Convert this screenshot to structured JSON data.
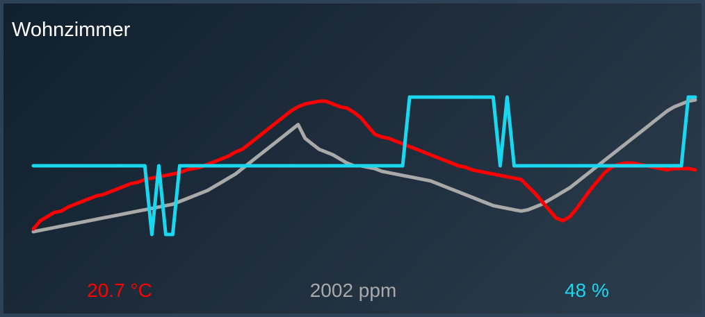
{
  "card": {
    "title": "Wohnzimmer"
  },
  "readouts": {
    "temperature": "20.7 °C",
    "co2": "2002 ppm",
    "humidity": "48 %"
  },
  "colors": {
    "temperature": "#ff0000",
    "co2": "#a9a9a9",
    "humidity": "#1ad7f0"
  },
  "chart_data": {
    "type": "line",
    "title": "",
    "xlabel": "",
    "ylabel": "",
    "grid": false,
    "legend": "none",
    "axes_visible": false,
    "n_points": 96,
    "series": [
      {
        "name": "20.7 °C",
        "color": "#ff0000",
        "ylim": [
          0,
          100
        ],
        "values": [
          4,
          10,
          13,
          16,
          17,
          20,
          22,
          24,
          26,
          28,
          29,
          31,
          33,
          35,
          37,
          38,
          40,
          41,
          42,
          43,
          44,
          45,
          47,
          48,
          49,
          51,
          53,
          55,
          57,
          60,
          62,
          66,
          70,
          74,
          78,
          82,
          86,
          90,
          93,
          95,
          96,
          97,
          97,
          95,
          93,
          92,
          89,
          85,
          79,
          73,
          71,
          70,
          68,
          66,
          64,
          62,
          60,
          58,
          56,
          54,
          52,
          50,
          49,
          47,
          46,
          45,
          44,
          43,
          42,
          41,
          40,
          35,
          30,
          24,
          18,
          12,
          10,
          13,
          19,
          26,
          33,
          39,
          45,
          49,
          51,
          52,
          52,
          51,
          50,
          49,
          48,
          47,
          48,
          48,
          48,
          47
        ]
      },
      {
        "name": "2002 ppm",
        "color": "#a9a9a9",
        "ylim": [
          0,
          100
        ],
        "values": [
          2,
          3,
          4,
          5,
          6,
          7,
          8,
          9,
          10,
          11,
          12,
          13,
          14,
          15,
          16,
          17,
          18,
          19,
          20,
          21,
          22,
          24,
          26,
          28,
          30,
          32,
          35,
          38,
          41,
          44,
          48,
          52,
          56,
          60,
          64,
          68,
          72,
          76,
          80,
          70,
          66,
          62,
          60,
          58,
          55,
          52,
          50,
          50,
          49,
          48,
          46,
          45,
          44,
          43,
          42,
          41,
          40,
          39,
          37,
          35,
          33,
          31,
          29,
          27,
          25,
          23,
          21,
          20,
          19,
          18,
          17,
          18,
          20,
          22,
          25,
          28,
          31,
          34,
          38,
          42,
          46,
          50,
          54,
          58,
          62,
          66,
          70,
          74,
          78,
          82,
          86,
          90,
          93,
          95,
          97,
          98
        ]
      },
      {
        "name": "48 %",
        "color": "#1ad7f0",
        "ylim": [
          0,
          100
        ],
        "values": [
          50,
          50,
          50,
          50,
          50,
          50,
          50,
          50,
          50,
          50,
          50,
          50,
          50,
          50,
          50,
          50,
          50,
          0,
          50,
          0,
          0,
          50,
          50,
          50,
          50,
          50,
          50,
          50,
          50,
          50,
          50,
          50,
          50,
          50,
          50,
          50,
          50,
          50,
          50,
          50,
          50,
          50,
          50,
          50,
          50,
          50,
          50,
          50,
          50,
          50,
          50,
          50,
          50,
          50,
          100,
          100,
          100,
          100,
          100,
          100,
          100,
          100,
          100,
          100,
          100,
          100,
          100,
          50,
          100,
          50,
          50,
          50,
          50,
          50,
          50,
          50,
          50,
          50,
          50,
          50,
          50,
          50,
          50,
          50,
          50,
          50,
          50,
          50,
          50,
          50,
          50,
          50,
          50,
          50,
          100,
          100
        ]
      }
    ]
  }
}
